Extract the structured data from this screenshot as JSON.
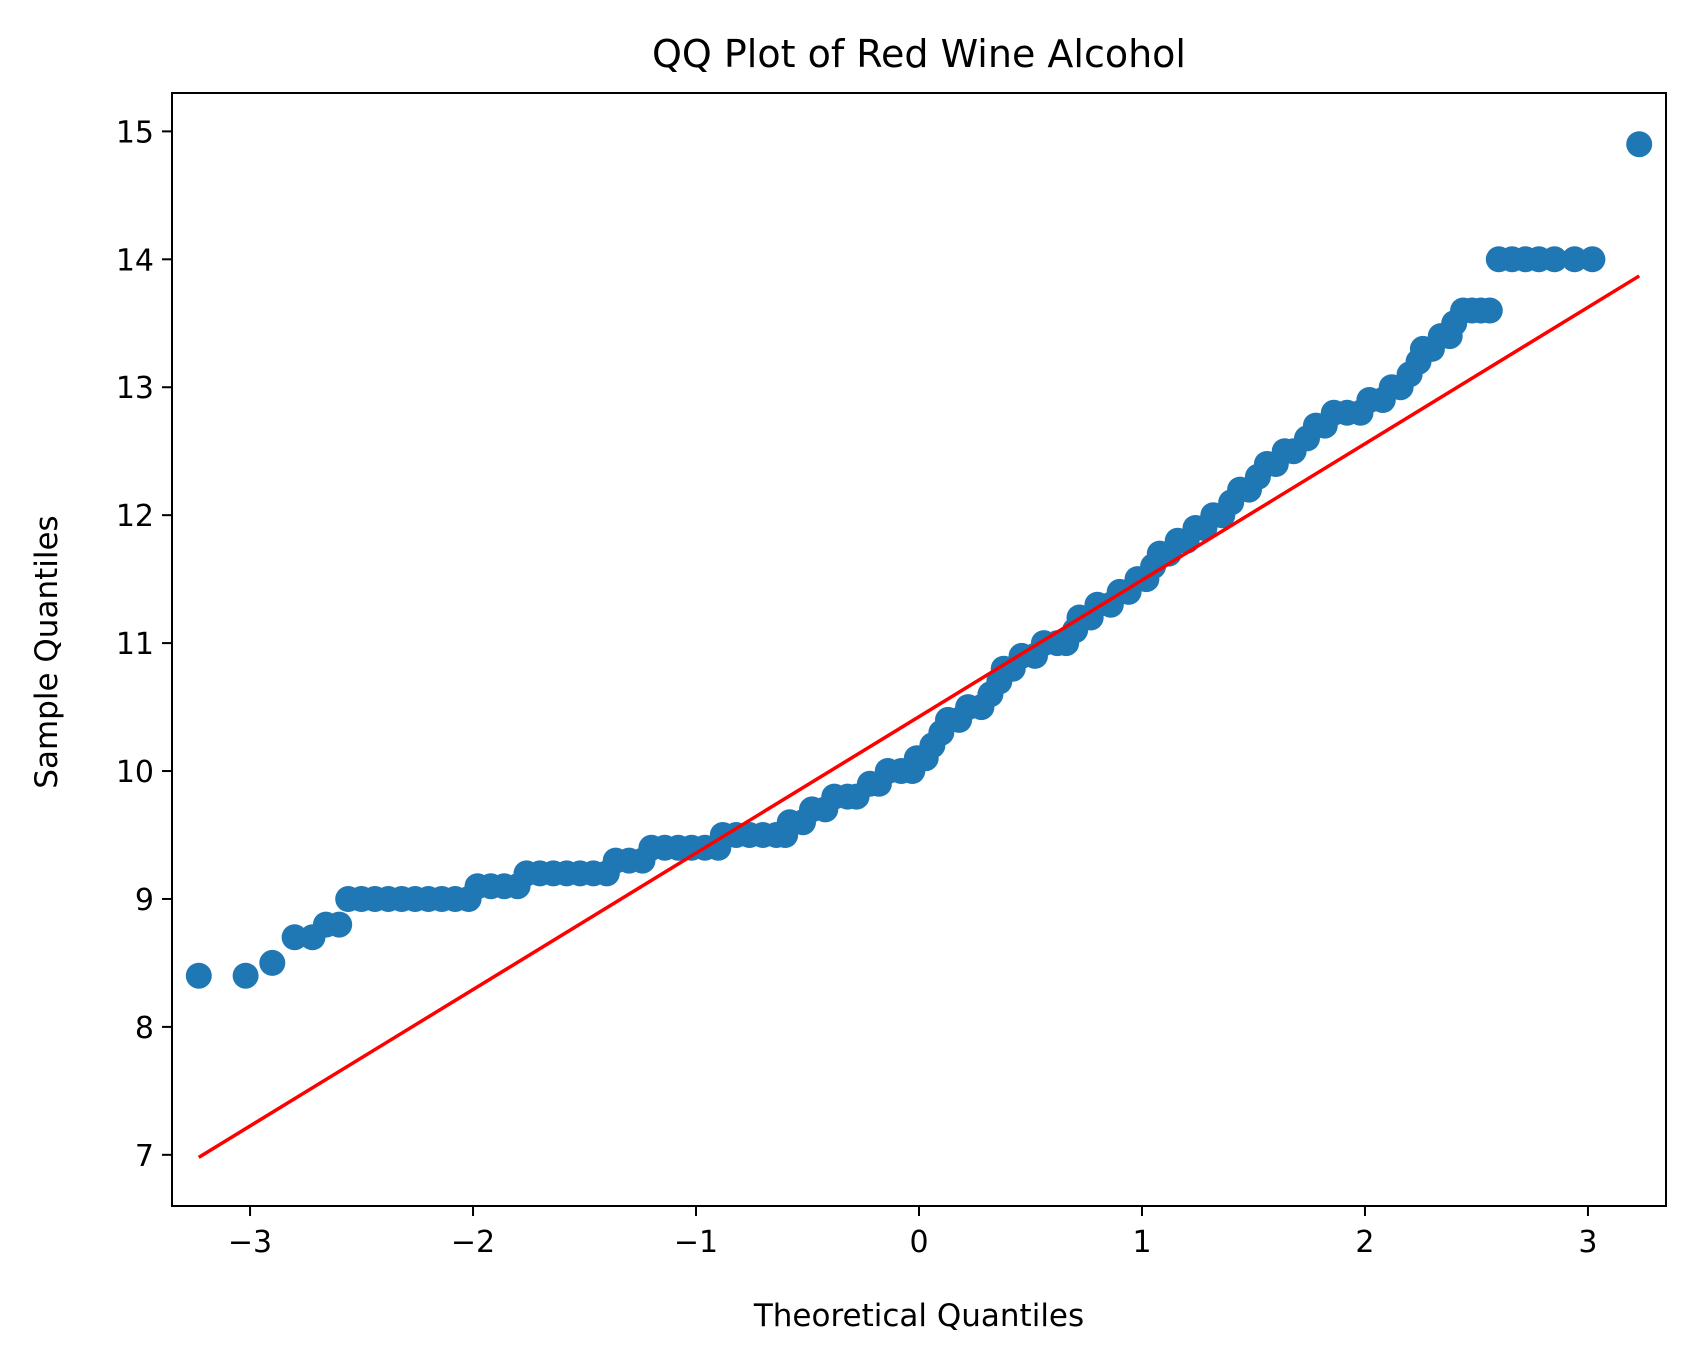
{
  "chart_data": {
    "type": "scatter",
    "title": "QQ Plot of Red Wine Alcohol",
    "xlabel": "Theoretical Quantiles",
    "ylabel": "Sample Quantiles",
    "xlim": [
      -3.35,
      3.35
    ],
    "ylim": [
      6.6,
      15.3
    ],
    "x_ticks": [
      -3,
      -2,
      -1,
      0,
      1,
      2,
      3
    ],
    "x_tick_labels": [
      "−3",
      "−2",
      "−1",
      "0",
      "1",
      "2",
      "3"
    ],
    "y_ticks": [
      7,
      8,
      9,
      10,
      11,
      12,
      13,
      14,
      15
    ],
    "y_tick_labels": [
      "7",
      "8",
      "9",
      "10",
      "11",
      "12",
      "13",
      "14",
      "15"
    ],
    "grid": false,
    "marker_color": "#1f77b4",
    "line_color": "#ff0000",
    "points": [
      [
        -3.23,
        8.4
      ],
      [
        -3.02,
        8.4
      ],
      [
        -2.9,
        8.5
      ],
      [
        -2.8,
        8.7
      ],
      [
        -2.72,
        8.7
      ],
      [
        -2.66,
        8.8
      ],
      [
        -2.6,
        8.8
      ],
      [
        -2.56,
        9.0
      ],
      [
        -2.5,
        9.0
      ],
      [
        -2.44,
        9.0
      ],
      [
        -2.38,
        9.0
      ],
      [
        -2.32,
        9.0
      ],
      [
        -2.26,
        9.0
      ],
      [
        -2.2,
        9.0
      ],
      [
        -2.14,
        9.0
      ],
      [
        -2.08,
        9.0
      ],
      [
        -2.02,
        9.0
      ],
      [
        -1.98,
        9.1
      ],
      [
        -1.92,
        9.1
      ],
      [
        -1.86,
        9.1
      ],
      [
        -1.8,
        9.1
      ],
      [
        -1.76,
        9.2
      ],
      [
        -1.7,
        9.2
      ],
      [
        -1.64,
        9.2
      ],
      [
        -1.58,
        9.2
      ],
      [
        -1.52,
        9.2
      ],
      [
        -1.46,
        9.2
      ],
      [
        -1.4,
        9.2
      ],
      [
        -1.36,
        9.3
      ],
      [
        -1.3,
        9.3
      ],
      [
        -1.24,
        9.3
      ],
      [
        -1.2,
        9.4
      ],
      [
        -1.14,
        9.4
      ],
      [
        -1.08,
        9.4
      ],
      [
        -1.02,
        9.4
      ],
      [
        -0.96,
        9.4
      ],
      [
        -0.9,
        9.4
      ],
      [
        -0.88,
        9.5
      ],
      [
        -0.82,
        9.5
      ],
      [
        -0.76,
        9.5
      ],
      [
        -0.7,
        9.5
      ],
      [
        -0.64,
        9.5
      ],
      [
        -0.6,
        9.5
      ],
      [
        -0.58,
        9.6
      ],
      [
        -0.52,
        9.6
      ],
      [
        -0.48,
        9.7
      ],
      [
        -0.42,
        9.7
      ],
      [
        -0.38,
        9.8
      ],
      [
        -0.32,
        9.8
      ],
      [
        -0.28,
        9.8
      ],
      [
        -0.22,
        9.9
      ],
      [
        -0.18,
        9.9
      ],
      [
        -0.14,
        10.0
      ],
      [
        -0.08,
        10.0
      ],
      [
        -0.03,
        10.0
      ],
      [
        -0.01,
        10.1
      ],
      [
        0.03,
        10.1
      ],
      [
        0.06,
        10.2
      ],
      [
        0.1,
        10.3
      ],
      [
        0.13,
        10.4
      ],
      [
        0.18,
        10.4
      ],
      [
        0.22,
        10.5
      ],
      [
        0.28,
        10.5
      ],
      [
        0.32,
        10.6
      ],
      [
        0.36,
        10.7
      ],
      [
        0.38,
        10.8
      ],
      [
        0.42,
        10.8
      ],
      [
        0.46,
        10.9
      ],
      [
        0.52,
        10.9
      ],
      [
        0.56,
        11.0
      ],
      [
        0.62,
        11.0
      ],
      [
        0.66,
        11.0
      ],
      [
        0.7,
        11.1
      ],
      [
        0.72,
        11.2
      ],
      [
        0.77,
        11.2
      ],
      [
        0.8,
        11.3
      ],
      [
        0.86,
        11.3
      ],
      [
        0.9,
        11.4
      ],
      [
        0.94,
        11.4
      ],
      [
        0.98,
        11.5
      ],
      [
        1.02,
        11.5
      ],
      [
        1.05,
        11.6
      ],
      [
        1.08,
        11.7
      ],
      [
        1.12,
        11.7
      ],
      [
        1.16,
        11.8
      ],
      [
        1.2,
        11.8
      ],
      [
        1.24,
        11.9
      ],
      [
        1.28,
        11.9
      ],
      [
        1.32,
        12.0
      ],
      [
        1.36,
        12.0
      ],
      [
        1.4,
        12.1
      ],
      [
        1.44,
        12.2
      ],
      [
        1.48,
        12.2
      ],
      [
        1.52,
        12.3
      ],
      [
        1.56,
        12.4
      ],
      [
        1.6,
        12.4
      ],
      [
        1.64,
        12.5
      ],
      [
        1.68,
        12.5
      ],
      [
        1.74,
        12.6
      ],
      [
        1.78,
        12.7
      ],
      [
        1.82,
        12.7
      ],
      [
        1.86,
        12.8
      ],
      [
        1.92,
        12.8
      ],
      [
        1.98,
        12.8
      ],
      [
        2.02,
        12.9
      ],
      [
        2.08,
        12.9
      ],
      [
        2.12,
        13.0
      ],
      [
        2.16,
        13.0
      ],
      [
        2.2,
        13.1
      ],
      [
        2.24,
        13.2
      ],
      [
        2.26,
        13.3
      ],
      [
        2.3,
        13.3
      ],
      [
        2.34,
        13.4
      ],
      [
        2.38,
        13.4
      ],
      [
        2.4,
        13.5
      ],
      [
        2.44,
        13.6
      ],
      [
        2.48,
        13.6
      ],
      [
        2.52,
        13.6
      ],
      [
        2.56,
        13.6
      ],
      [
        2.6,
        14.0
      ],
      [
        2.66,
        14.0
      ],
      [
        2.72,
        14.0
      ],
      [
        2.78,
        14.0
      ],
      [
        2.85,
        14.0
      ],
      [
        2.94,
        14.0
      ],
      [
        3.02,
        14.0
      ],
      [
        3.23,
        14.9
      ]
    ],
    "reference_line": {
      "x": [
        -3.23,
        3.23
      ],
      "y": [
        6.98,
        13.87
      ]
    }
  }
}
